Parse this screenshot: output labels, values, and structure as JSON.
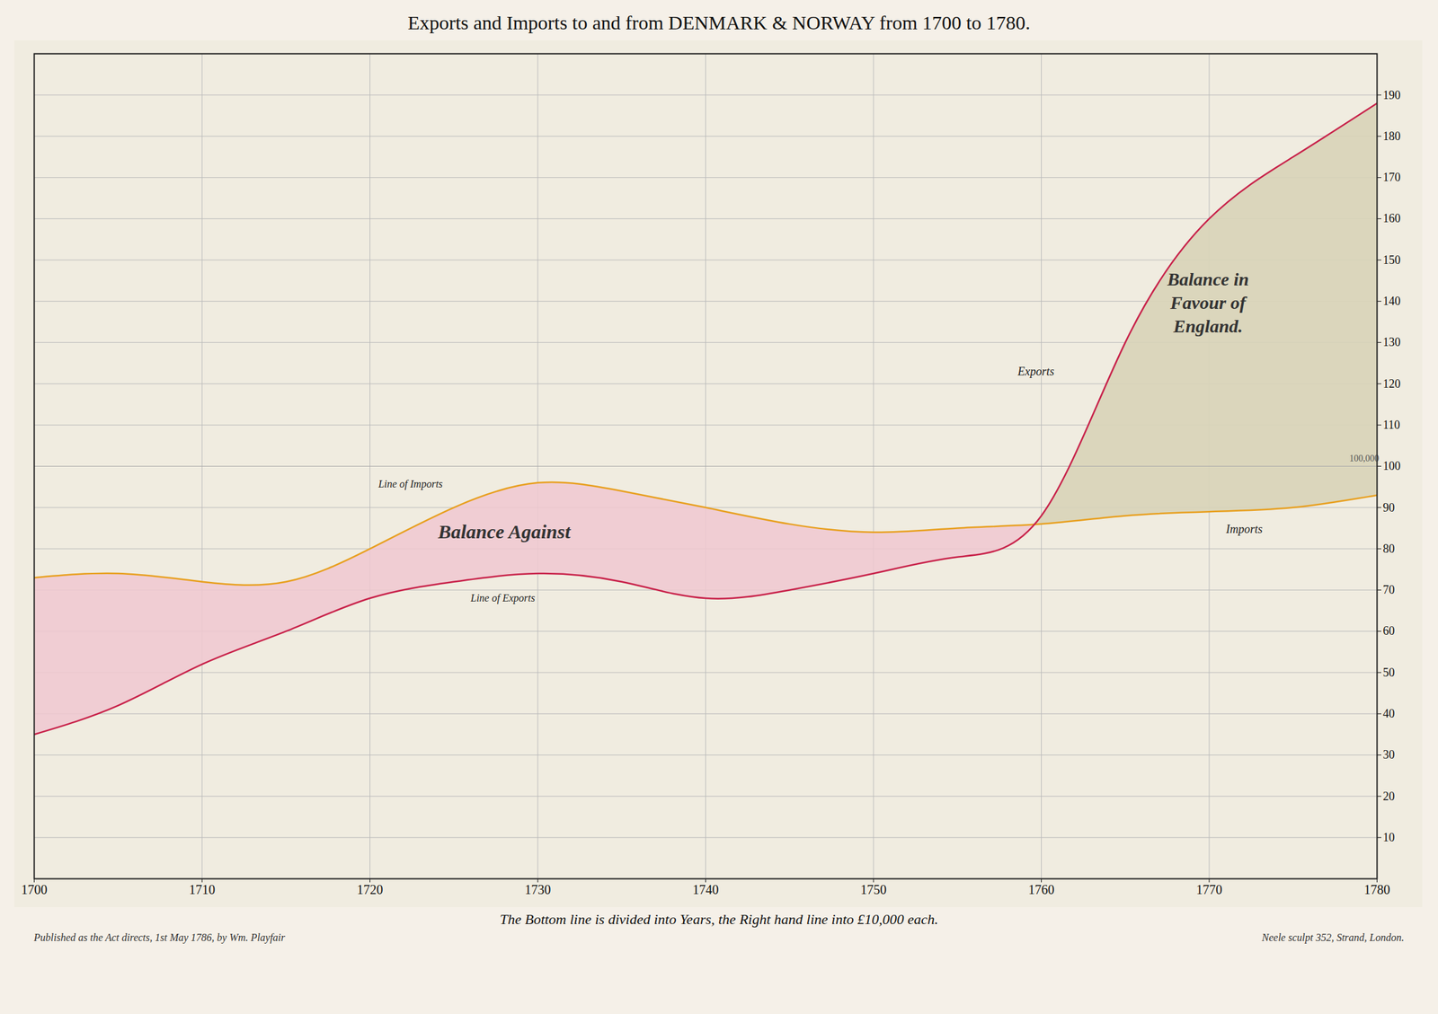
{
  "chart_data": {
    "type": "line",
    "title": "Exports and Imports to and from DENMARK & NORWAY from 1700 to 1780.",
    "subtitle": "The Bottom line is divided into Years, the Right hand line into £10,000 each.",
    "footnote_left": "Published as the Act directs, 1st May 1786, by Wm. Playfair",
    "footnote_right": "Neele sculpt 352, Strand, London.",
    "x": [
      1700,
      1705,
      1710,
      1715,
      1720,
      1725,
      1730,
      1735,
      1740,
      1745,
      1750,
      1755,
      1760,
      1765,
      1770,
      1775,
      1780
    ],
    "series": [
      {
        "name": "Exports",
        "color": "#c8224a",
        "values": [
          35,
          42,
          52,
          60,
          68,
          72,
          74,
          72,
          68,
          70,
          74,
          78,
          88,
          130,
          160,
          175,
          188
        ]
      },
      {
        "name": "Imports",
        "color": "#e8a020",
        "values": [
          73,
          74,
          72,
          72,
          80,
          90,
          96,
          94,
          90,
          86,
          84,
          85,
          86,
          88,
          89,
          90,
          93
        ]
      }
    ],
    "hline": 100,
    "annotations": [
      {
        "text": "Line of Imports",
        "x": 1720.5,
        "y": 95
      },
      {
        "text": "Line of Exports",
        "x": 1726,
        "y": 69
      },
      {
        "text": "Exports",
        "x": 1761,
        "y": 123
      },
      {
        "text": "Imports",
        "x": 1771,
        "y": 86
      },
      {
        "text": "Balance Against",
        "x": 1728,
        "y": 84
      },
      {
        "text": "Balance in\nFavour of\nEngland.",
        "x": 1769,
        "y": 140
      },
      {
        "text": "100,000",
        "x": 1780.5,
        "y": 100
      }
    ],
    "xlim": [
      1700,
      1780
    ],
    "xticks": [
      1700,
      1710,
      1720,
      1730,
      1740,
      1750,
      1760,
      1770,
      1780
    ],
    "ylim": [
      0,
      200
    ],
    "yticks": [
      10,
      20,
      30,
      40,
      50,
      60,
      70,
      80,
      90,
      100,
      110,
      120,
      130,
      140,
      150,
      160,
      170,
      180,
      190
    ],
    "grid": true,
    "legend": "none"
  }
}
